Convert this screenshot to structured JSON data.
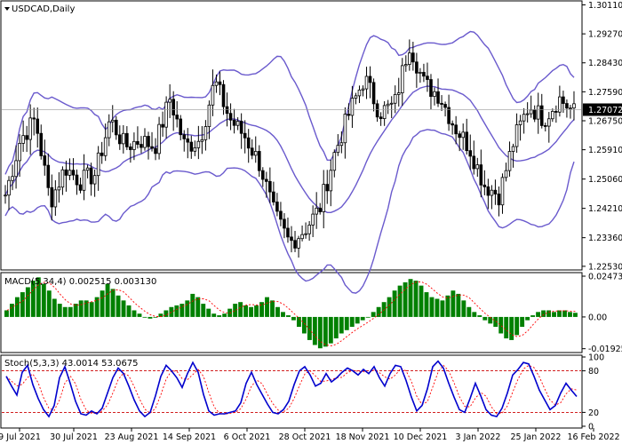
{
  "chart_data": [
    {
      "type": "candlestick",
      "symbol": "USDCAD",
      "timeframe": "Daily",
      "title": "USDCAD,Daily",
      "ylim": [
        1.2245,
        1.302
      ],
      "y_ticks": [
        "1.30110",
        "1.29270",
        "1.28430",
        "1.27590",
        "1.26750",
        "1.25910",
        "1.25060",
        "1.24210",
        "1.23360",
        "1.22530"
      ],
      "current_price": "1.27072",
      "x_ticks": [
        "9 Jul 2021",
        "30 Jul 2021",
        "23 Aug 2021",
        "14 Sep 2021",
        "6 Oct 2021",
        "28 Oct 2021",
        "18 Nov 2021",
        "10 Dec 2021",
        "3 Jan 2022",
        "25 Jan 2022",
        "16 Feb 2022"
      ],
      "close_path": [
        1.246,
        1.262,
        1.268,
        1.244,
        1.254,
        1.25,
        1.252,
        1.268,
        1.26,
        1.262,
        1.26,
        1.274,
        1.26,
        1.262,
        1.279,
        1.268,
        1.263,
        1.255,
        1.24,
        1.232,
        1.236,
        1.242,
        1.258,
        1.27,
        1.28,
        1.27,
        1.272,
        1.29,
        1.278,
        1.275,
        1.266,
        1.26,
        1.249,
        1.246,
        1.262,
        1.272,
        1.268,
        1.274,
        1.27
      ],
      "overlay": "Bollinger Bands",
      "overlay_color": "#6a5acd",
      "candle_color": "#000000"
    },
    {
      "type": "bar",
      "indicator": "MACD",
      "header": "MACD(5,34,4) 0.002515 0.003130",
      "y_ticks": [
        "0.02473",
        "0.00",
        "-0.019251"
      ],
      "ylim": [
        -0.0205,
        0.0258
      ],
      "histogram": [
        0.004,
        0.008,
        0.012,
        0.015,
        0.018,
        0.022,
        0.024,
        0.02,
        0.016,
        0.011,
        0.008,
        0.006,
        0.006,
        0.008,
        0.01,
        0.01,
        0.009,
        0.012,
        0.016,
        0.02,
        0.017,
        0.013,
        0.01,
        0.007,
        0.004,
        0.002,
        0.0,
        -0.001,
        0.0,
        0.002,
        0.004,
        0.006,
        0.007,
        0.008,
        0.01,
        0.014,
        0.012,
        0.008,
        0.005,
        0.002,
        0.001,
        0.002,
        0.005,
        0.008,
        0.009,
        0.007,
        0.006,
        0.007,
        0.009,
        0.012,
        0.01,
        0.006,
        0.003,
        0.001,
        -0.002,
        -0.006,
        -0.01,
        -0.014,
        -0.017,
        -0.019,
        -0.018,
        -0.016,
        -0.013,
        -0.01,
        -0.008,
        -0.006,
        -0.004,
        -0.002,
        0.0,
        0.003,
        0.006,
        0.009,
        0.012,
        0.016,
        0.019,
        0.021,
        0.023,
        0.022,
        0.019,
        0.015,
        0.012,
        0.011,
        0.01,
        0.013,
        0.016,
        0.014,
        0.01,
        0.006,
        0.003,
        0.001,
        -0.002,
        -0.004,
        -0.006,
        -0.01,
        -0.013,
        -0.014,
        -0.011,
        -0.006,
        -0.002,
        0.001,
        0.003,
        0.004,
        0.004,
        0.003,
        0.004,
        0.004,
        0.003,
        0.0025
      ],
      "color": "#008000",
      "signal_color": "#ff0000"
    },
    {
      "type": "line",
      "indicator": "Stochastic",
      "header": "Stoch(5,3,3) 43.0014 53.0675",
      "y_ticks": [
        "100",
        "80",
        "20",
        "0"
      ],
      "ylim": [
        0,
        100
      ],
      "levels": [
        80,
        20
      ],
      "k_color": "#0000cd",
      "d_color": "#ff0000",
      "k": [
        72,
        58,
        45,
        78,
        88,
        60,
        40,
        24,
        14,
        30,
        70,
        86,
        62,
        36,
        18,
        16,
        22,
        18,
        26,
        48,
        70,
        84,
        76,
        58,
        38,
        22,
        14,
        20,
        44,
        72,
        88,
        80,
        70,
        56,
        76,
        92,
        78,
        46,
        22,
        16,
        18,
        18,
        20,
        22,
        34,
        62,
        78,
        60,
        46,
        32,
        20,
        18,
        24,
        36,
        60,
        80,
        86,
        74,
        58,
        62,
        76,
        64,
        70,
        78,
        84,
        80,
        74,
        82,
        76,
        86,
        70,
        58,
        76,
        88,
        86,
        66,
        42,
        22,
        30,
        54,
        86,
        94,
        84,
        62,
        42,
        24,
        20,
        40,
        62,
        44,
        24,
        16,
        14,
        26,
        48,
        74,
        82,
        92,
        90,
        72,
        52,
        38,
        24,
        30,
        48,
        62,
        52,
        43
      ]
    }
  ]
}
